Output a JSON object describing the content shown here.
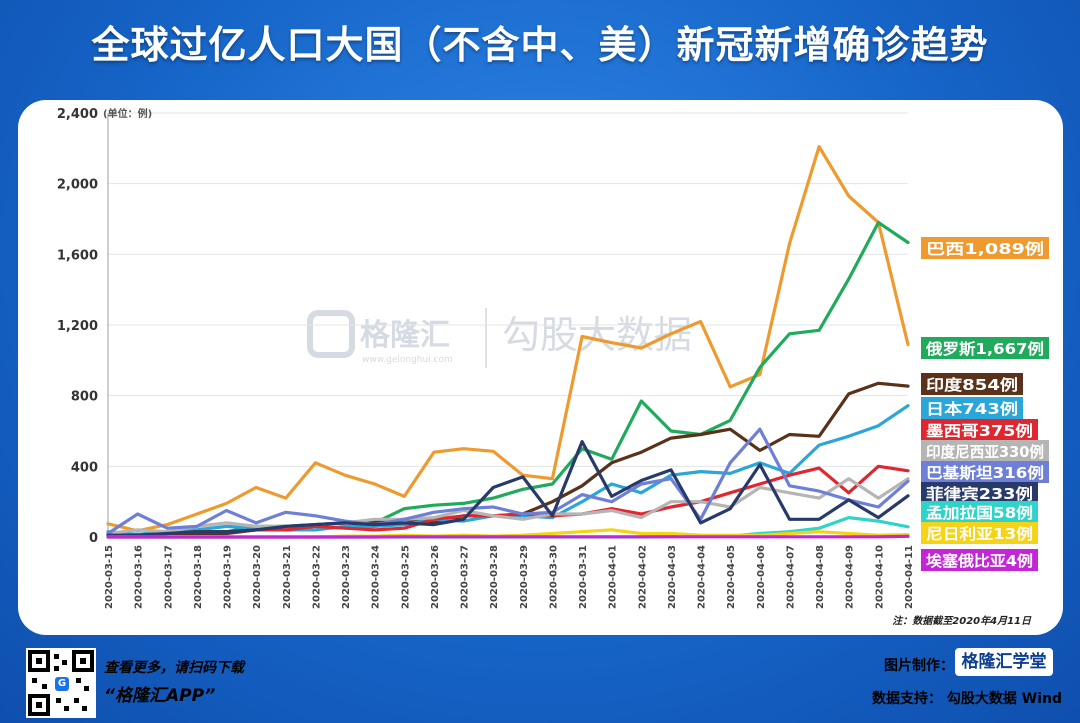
{
  "title": "全球过亿人口大国（不含中、美）新冠新增确诊趋势",
  "watermark": {
    "brand": "格隆汇",
    "url": "www.gelonghui.com",
    "product": "勾股大数据"
  },
  "footer": {
    "left_line1": "查看更多，请扫码下载",
    "left_line2": "“格隆汇APP”",
    "right_made_label": "图片制作：",
    "right_brand": "格隆汇学堂",
    "right_source": "数据支持： 勾股大数据  Wind"
  },
  "chart_data": {
    "type": "line",
    "unit_label": "(单位：例)",
    "note": "注：数据截至2020年4月11日",
    "ylim": [
      0,
      2400
    ],
    "yticks": [
      "0",
      "400",
      "800",
      "1,200",
      "1,600",
      "2,000",
      "2,400"
    ],
    "categories": [
      "2020-03-15",
      "2020-03-16",
      "2020-03-17",
      "2020-03-18",
      "2020-03-19",
      "2020-03-20",
      "2020-03-21",
      "2020-03-22",
      "2020-03-23",
      "2020-03-24",
      "2020-03-25",
      "2020-03-26",
      "2020-03-27",
      "2020-03-28",
      "2020-03-29",
      "2020-03-30",
      "2020-03-31",
      "2020-04-01",
      "2020-04-02",
      "2020-04-03",
      "2020-04-04",
      "2020-04-05",
      "2020-04-06",
      "2020-04-07",
      "2020-04-08",
      "2020-04-09",
      "2020-04-10",
      "2020-04-11"
    ],
    "series": [
      {
        "name": "巴西",
        "label": "巴西1,089例",
        "color": "#ee9a2e",
        "values": [
          75,
          35,
          70,
          130,
          190,
          280,
          220,
          420,
          350,
          300,
          230,
          480,
          500,
          485,
          350,
          330,
          1135,
          1100,
          1070,
          1150,
          1220,
          850,
          920,
          1660,
          2210,
          1930,
          1780,
          1089
        ]
      },
      {
        "name": "俄罗斯",
        "label": "俄罗斯1,667例",
        "color": "#1faa5c",
        "values": [
          20,
          10,
          30,
          30,
          30,
          60,
          60,
          70,
          80,
          80,
          160,
          180,
          190,
          220,
          270,
          300,
          500,
          440,
          770,
          600,
          580,
          660,
          960,
          1150,
          1170,
          1460,
          1780,
          1667
        ]
      },
      {
        "name": "印度",
        "label": "印度854例",
        "color": "#5a3219",
        "values": [
          10,
          10,
          20,
          20,
          20,
          40,
          60,
          70,
          80,
          90,
          100,
          80,
          120,
          120,
          130,
          200,
          290,
          420,
          480,
          560,
          580,
          610,
          490,
          580,
          570,
          810,
          870,
          854
        ]
      },
      {
        "name": "日本",
        "label": "日本743例",
        "color": "#2aa6d8",
        "values": [
          30,
          15,
          30,
          40,
          60,
          50,
          40,
          40,
          60,
          60,
          70,
          100,
          90,
          120,
          120,
          110,
          200,
          300,
          250,
          350,
          370,
          360,
          420,
          360,
          520,
          570,
          630,
          743
        ]
      },
      {
        "name": "墨西哥",
        "label": "墨西哥375例",
        "color": "#e0262e",
        "values": [
          10,
          10,
          20,
          30,
          30,
          40,
          40,
          60,
          50,
          40,
          50,
          100,
          120,
          120,
          130,
          120,
          130,
          160,
          130,
          170,
          200,
          250,
          300,
          350,
          390,
          250,
          400,
          375
        ]
      },
      {
        "name": "印度尼西亚",
        "label": "印度尼西亚330例",
        "color": "#b5b5b5",
        "values": [
          20,
          40,
          30,
          60,
          80,
          60,
          60,
          70,
          80,
          100,
          100,
          110,
          150,
          120,
          100,
          130,
          130,
          150,
          110,
          200,
          200,
          170,
          280,
          250,
          220,
          330,
          220,
          330
        ]
      },
      {
        "name": "巴基斯坦",
        "label": "巴基斯坦316例",
        "color": "#6d7fd6",
        "values": [
          20,
          130,
          50,
          60,
          150,
          80,
          140,
          120,
          90,
          70,
          100,
          140,
          160,
          170,
          130,
          140,
          240,
          200,
          300,
          330,
          100,
          420,
          610,
          290,
          260,
          210,
          170,
          316
        ]
      },
      {
        "name": "菲律宾",
        "label": "菲律宾233例",
        "color": "#283a6a",
        "values": [
          10,
          10,
          20,
          30,
          30,
          40,
          60,
          70,
          80,
          70,
          80,
          70,
          100,
          280,
          340,
          120,
          540,
          230,
          320,
          380,
          80,
          160,
          410,
          100,
          100,
          210,
          110,
          233
        ]
      },
      {
        "name": "孟加拉国",
        "label": "孟加拉国58例",
        "color": "#2ed4c8",
        "values": [
          0,
          0,
          0,
          0,
          0,
          0,
          0,
          0,
          0,
          0,
          0,
          0,
          0,
          0,
          0,
          0,
          0,
          0,
          0,
          2,
          5,
          5,
          20,
          30,
          50,
          110,
          90,
          58
        ]
      },
      {
        "name": "尼日利亚",
        "label": "尼日利亚13例",
        "color": "#f5d316",
        "values": [
          0,
          0,
          0,
          0,
          0,
          0,
          0,
          0,
          5,
          5,
          10,
          5,
          10,
          5,
          10,
          20,
          30,
          40,
          20,
          20,
          10,
          10,
          10,
          20,
          30,
          20,
          10,
          13
        ]
      },
      {
        "name": "埃塞俄比亚",
        "label": "埃塞俄比亚4例",
        "color": "#c326d6",
        "values": [
          0,
          0,
          0,
          0,
          0,
          0,
          0,
          0,
          0,
          0,
          1,
          1,
          1,
          1,
          1,
          1,
          1,
          1,
          1,
          1,
          1,
          1,
          1,
          1,
          1,
          1,
          1,
          4
        ]
      }
    ]
  }
}
